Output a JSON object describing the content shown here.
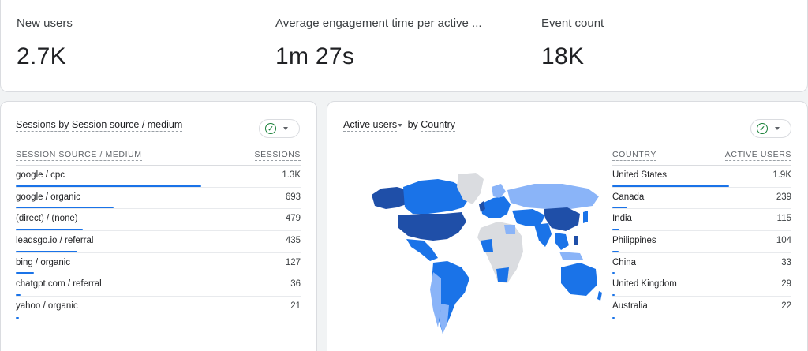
{
  "metrics": [
    {
      "label": "New users",
      "value": "2.7K"
    },
    {
      "label": "Average engagement time per active ...",
      "value": "1m 27s"
    },
    {
      "label": "Event count",
      "value": "18K"
    }
  ],
  "sessions_card": {
    "title_part1": "Sessions by",
    "title_part2": "Session source / medium",
    "col_source": "SESSION SOURCE / MEDIUM",
    "col_sessions": "SESSIONS",
    "rows": [
      {
        "label": "google / cpc",
        "value": "1.3K",
        "share": 1.0
      },
      {
        "label": "google / organic",
        "value": "693",
        "share": 0.527
      },
      {
        "label": "(direct) / (none)",
        "value": "479",
        "share": 0.364
      },
      {
        "label": "leadsgo.io / referral",
        "value": "435",
        "share": 0.331
      },
      {
        "label": "bing / organic",
        "value": "127",
        "share": 0.097
      },
      {
        "label": "chatgpt.com / referral",
        "value": "36",
        "share": 0.027
      },
      {
        "label": "yahoo / organic",
        "value": "21",
        "share": 0.016
      }
    ]
  },
  "country_card": {
    "title_part1": "Active users",
    "title_part2": "by",
    "title_part3": "Country",
    "col_country": "COUNTRY",
    "col_users": "ACTIVE USERS",
    "rows": [
      {
        "label": "United States",
        "value": "1.9K",
        "share": 1.0
      },
      {
        "label": "Canada",
        "value": "239",
        "share": 0.126
      },
      {
        "label": "India",
        "value": "115",
        "share": 0.061
      },
      {
        "label": "Philippines",
        "value": "104",
        "share": 0.055
      },
      {
        "label": "China",
        "value": "33",
        "share": 0.017
      },
      {
        "label": "United Kingdom",
        "value": "29",
        "share": 0.015
      },
      {
        "label": "Australia",
        "value": "22",
        "share": 0.012
      }
    ]
  },
  "icons": {
    "compare": "check-circle-icon",
    "menu": "caret-down-icon"
  },
  "colors": {
    "bar": "#1a73e8",
    "map_high": "#1f4fa8",
    "map_mid": "#1a73e8",
    "map_low": "#8ab4f8",
    "map_none": "#dadce0",
    "check": "#188038"
  }
}
